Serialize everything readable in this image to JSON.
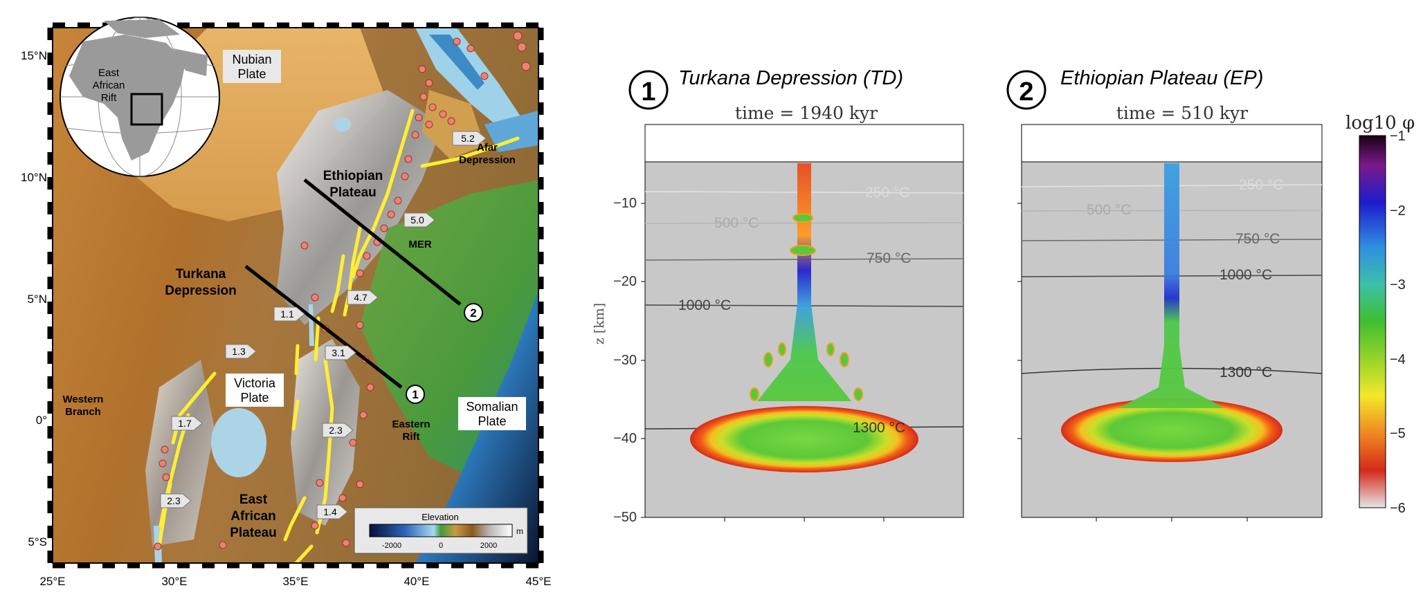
{
  "map": {
    "lat_labels": [
      "15°N",
      "10°N",
      "5°N",
      "0°",
      "5°S"
    ],
    "lon_labels": [
      "25°E",
      "30°E",
      "35°E",
      "40°E",
      "45°E"
    ],
    "plate_labels": {
      "nubian": [
        "Nubian",
        "Plate"
      ],
      "victoria": [
        "Victoria",
        "Plate"
      ],
      "somalian": [
        "Somalian",
        "Plate"
      ]
    },
    "region_labels": {
      "ethiopian_plateau": [
        "Ethiopian",
        "Plateau"
      ],
      "turkana_depression": [
        "Turkana",
        "Depression"
      ],
      "afar_depression": [
        "Afar",
        "Depression"
      ],
      "mer": "MER",
      "western_branch": [
        "Western",
        "Branch"
      ],
      "eastern_rift": [
        "Eastern",
        "Rift"
      ],
      "east_african_plateau": [
        "East",
        "African",
        "Plateau"
      ]
    },
    "inset_label": [
      "East",
      "African",
      "Rift"
    ],
    "rates": [
      "5.2",
      "5.0",
      "4.7",
      "1.1",
      "1.3",
      "3.1",
      "1.7",
      "2.3",
      "2.3",
      "1.4"
    ],
    "profile_markers": [
      "1",
      "2"
    ],
    "elevation_legend": {
      "title": "Elevation",
      "ticks": [
        "-2000",
        "0",
        "2000"
      ],
      "unit": "m"
    }
  },
  "panel1": {
    "number": "1",
    "title": "Turkana Depression (TD)",
    "time": "time = 1940 kyr",
    "isotherms": [
      "250 °C",
      "500 °C",
      "750 °C",
      "1000 °C",
      "1300 °C"
    ]
  },
  "panel2": {
    "number": "2",
    "title": "Ethiopian Plateau (EP)",
    "time": "time = 510 kyr",
    "isotherms": [
      "250 °C",
      "500 °C",
      "750 °C",
      "1000 °C",
      "1300 °C"
    ]
  },
  "z_axis": {
    "label": "z [km]",
    "ticks": [
      "−10",
      "−20",
      "−30",
      "−40",
      "−50"
    ]
  },
  "colorbar": {
    "label": "log10 φ",
    "ticks": [
      "−1",
      "−2",
      "−3",
      "−4",
      "−5",
      "−6"
    ]
  },
  "colors": {
    "rift_yellow": "#ffee33",
    "quake_pink": "#f08070",
    "background_gray": "#c8c8c8"
  }
}
